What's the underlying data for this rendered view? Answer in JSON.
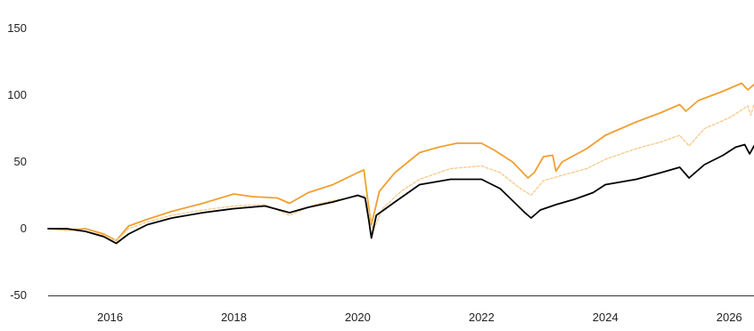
{
  "colors": {
    "background": "#ffffff",
    "text": "#222222",
    "axis": "#333333"
  },
  "chart_data": {
    "type": "line",
    "title": "",
    "xlabel": "",
    "ylabel": "",
    "xlim": [
      2015.0,
      2026.4
    ],
    "ylim": [
      -50,
      150
    ],
    "grid": false,
    "legend": "none",
    "x_ticks": [
      {
        "value": 2016,
        "label": "2016"
      },
      {
        "value": 2018,
        "label": "2018"
      },
      {
        "value": 2020,
        "label": "2020"
      },
      {
        "value": 2022,
        "label": "2022"
      },
      {
        "value": 2024,
        "label": "2024"
      },
      {
        "value": 2026,
        "label": "2026"
      }
    ],
    "y_ticks": [
      {
        "value": 150,
        "label": "150"
      },
      {
        "value": 100,
        "label": "100"
      },
      {
        "value": 50,
        "label": "50"
      },
      {
        "value": 0,
        "label": "0"
      },
      {
        "value": -50,
        "label": "-50"
      }
    ],
    "series": [
      {
        "color": "#F0A030",
        "style": "solid",
        "points": [
          [
            2015.0,
            0
          ],
          [
            2015.3,
            -1
          ],
          [
            2015.6,
            0
          ],
          [
            2015.9,
            -4
          ],
          [
            2016.1,
            -9
          ],
          [
            2016.3,
            2
          ],
          [
            2016.6,
            7
          ],
          [
            2017.0,
            13
          ],
          [
            2017.5,
            19
          ],
          [
            2018.0,
            26
          ],
          [
            2018.3,
            24
          ],
          [
            2018.7,
            23
          ],
          [
            2018.9,
            19
          ],
          [
            2019.2,
            27
          ],
          [
            2019.6,
            33
          ],
          [
            2020.0,
            42
          ],
          [
            2020.1,
            44
          ],
          [
            2020.18,
            15
          ],
          [
            2020.22,
            3
          ],
          [
            2020.35,
            28
          ],
          [
            2020.6,
            42
          ],
          [
            2021.0,
            57
          ],
          [
            2021.3,
            61
          ],
          [
            2021.6,
            64
          ],
          [
            2022.0,
            64
          ],
          [
            2022.2,
            59
          ],
          [
            2022.5,
            50
          ],
          [
            2022.75,
            38
          ],
          [
            2022.85,
            42
          ],
          [
            2023.0,
            54
          ],
          [
            2023.15,
            55
          ],
          [
            2023.2,
            43
          ],
          [
            2023.3,
            50
          ],
          [
            2023.7,
            60
          ],
          [
            2024.0,
            70
          ],
          [
            2024.5,
            80
          ],
          [
            2024.9,
            87
          ],
          [
            2025.2,
            93
          ],
          [
            2025.3,
            88
          ],
          [
            2025.5,
            96
          ],
          [
            2025.9,
            103
          ],
          [
            2026.2,
            109
          ],
          [
            2026.3,
            104
          ],
          [
            2026.4,
            108
          ]
        ]
      },
      {
        "color": "#F7C47F",
        "style": "dashed",
        "points": [
          [
            2015.0,
            0
          ],
          [
            2015.3,
            -1
          ],
          [
            2015.6,
            -2
          ],
          [
            2015.9,
            -5
          ],
          [
            2016.1,
            -9
          ],
          [
            2016.3,
            0
          ],
          [
            2016.6,
            5
          ],
          [
            2017.0,
            10
          ],
          [
            2017.5,
            14
          ],
          [
            2018.0,
            17
          ],
          [
            2018.5,
            18
          ],
          [
            2018.9,
            10
          ],
          [
            2019.3,
            18
          ],
          [
            2019.7,
            22
          ],
          [
            2020.1,
            25
          ],
          [
            2020.2,
            10
          ],
          [
            2020.25,
            -2
          ],
          [
            2020.4,
            15
          ],
          [
            2020.7,
            28
          ],
          [
            2021.0,
            37
          ],
          [
            2021.5,
            45
          ],
          [
            2022.0,
            47
          ],
          [
            2022.3,
            42
          ],
          [
            2022.6,
            31
          ],
          [
            2022.8,
            25
          ],
          [
            2023.0,
            36
          ],
          [
            2023.3,
            40
          ],
          [
            2023.7,
            45
          ],
          [
            2024.0,
            52
          ],
          [
            2024.5,
            60
          ],
          [
            2024.9,
            65
          ],
          [
            2025.2,
            70
          ],
          [
            2025.35,
            62
          ],
          [
            2025.6,
            75
          ],
          [
            2026.0,
            83
          ],
          [
            2026.3,
            92
          ],
          [
            2026.35,
            85
          ],
          [
            2026.4,
            93
          ]
        ]
      },
      {
        "color": "#000000",
        "style": "solid",
        "points": [
          [
            2015.0,
            0
          ],
          [
            2015.3,
            0
          ],
          [
            2015.6,
            -2
          ],
          [
            2015.9,
            -6
          ],
          [
            2016.1,
            -11
          ],
          [
            2016.3,
            -4
          ],
          [
            2016.6,
            3
          ],
          [
            2017.0,
            8
          ],
          [
            2017.5,
            12
          ],
          [
            2018.0,
            15
          ],
          [
            2018.5,
            17
          ],
          [
            2018.9,
            12
          ],
          [
            2019.2,
            16
          ],
          [
            2019.6,
            20
          ],
          [
            2020.0,
            25
          ],
          [
            2020.12,
            23
          ],
          [
            2020.18,
            6
          ],
          [
            2020.22,
            -7
          ],
          [
            2020.3,
            10
          ],
          [
            2020.6,
            20
          ],
          [
            2021.0,
            33
          ],
          [
            2021.5,
            37
          ],
          [
            2022.0,
            37
          ],
          [
            2022.3,
            30
          ],
          [
            2022.5,
            21
          ],
          [
            2022.7,
            12
          ],
          [
            2022.8,
            8
          ],
          [
            2022.95,
            14
          ],
          [
            2023.2,
            18
          ],
          [
            2023.5,
            22
          ],
          [
            2023.8,
            27
          ],
          [
            2024.0,
            33
          ],
          [
            2024.5,
            37
          ],
          [
            2024.9,
            42
          ],
          [
            2025.2,
            46
          ],
          [
            2025.35,
            38
          ],
          [
            2025.6,
            48
          ],
          [
            2025.9,
            55
          ],
          [
            2026.1,
            61
          ],
          [
            2026.25,
            63
          ],
          [
            2026.33,
            56
          ],
          [
            2026.4,
            62
          ]
        ]
      }
    ]
  }
}
